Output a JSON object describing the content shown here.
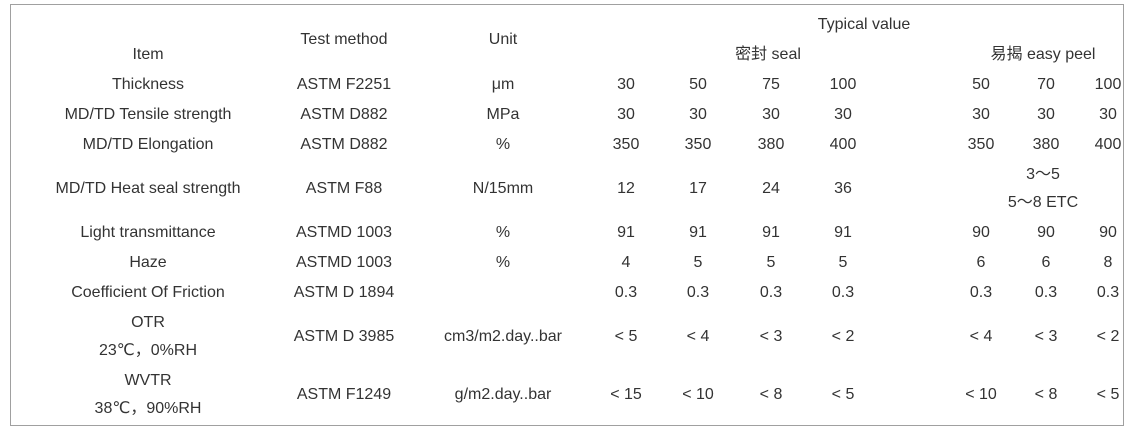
{
  "header": {
    "typical_value": "Typical value",
    "item": "Item",
    "test_method": "Test method",
    "unit": "Unit",
    "seal": "密封 seal",
    "easy_peel": "易揭 easy peel"
  },
  "rows": [
    {
      "item": "Thickness",
      "method": "ASTM F2251",
      "unit": "μm",
      "seal": [
        "30",
        "50",
        "75",
        "100"
      ],
      "easy_peel": [
        "50",
        "70",
        "100"
      ]
    },
    {
      "item": "MD/TD Tensile strength",
      "method": "ASTM D882",
      "unit": "MPa",
      "seal": [
        "30",
        "30",
        "30",
        "30"
      ],
      "easy_peel": [
        "30",
        "30",
        "30"
      ]
    },
    {
      "item": "MD/TD Elongation",
      "method": "ASTM D882",
      "unit": "%",
      "seal": [
        "350",
        "350",
        "380",
        "400"
      ],
      "easy_peel": [
        "350",
        "380",
        "400"
      ]
    },
    {
      "item": "MD/TD Heat seal strength",
      "method": "ASTM F88",
      "unit": "N/15mm",
      "seal": [
        "12",
        "17",
        "24",
        "36"
      ],
      "easy_peel": [
        "3～5",
        "5～8 ETC"
      ]
    },
    {
      "item": "Light transmittance",
      "method": "ASTMD 1003",
      "unit": "%",
      "seal": [
        "91",
        "91",
        "91",
        "91"
      ],
      "easy_peel": [
        "90",
        "90",
        "90"
      ]
    },
    {
      "item": "Haze",
      "method": "ASTMD 1003",
      "unit": "%",
      "seal": [
        "4",
        "5",
        "5",
        "5"
      ],
      "easy_peel": [
        "6",
        "6",
        "8"
      ]
    },
    {
      "item": "Coefficient Of Friction",
      "method": "ASTM D 1894",
      "seal": [
        "0.3",
        "0.3",
        "0.3",
        "0.3"
      ],
      "easy_peel": [
        "0.3",
        "0.3",
        "0.3"
      ]
    },
    {
      "item": [
        "OTR",
        "23℃，0%RH"
      ],
      "method": "ASTM D 3985",
      "unit": "cm3/m2.day..bar",
      "seal": [
        "< 5",
        "< 4",
        "< 3",
        "< 2"
      ],
      "easy_peel": [
        "< 4",
        "< 3",
        "< 2"
      ]
    },
    {
      "item": [
        "WVTR",
        "38℃，90%RH"
      ],
      "method": "ASTM F1249",
      "unit": "g/m2.day..bar",
      "seal": [
        "< 15",
        "< 10",
        "< 8",
        "< 5"
      ],
      "easy_peel": [
        "< 10",
        "< 8",
        "< 5"
      ]
    }
  ]
}
